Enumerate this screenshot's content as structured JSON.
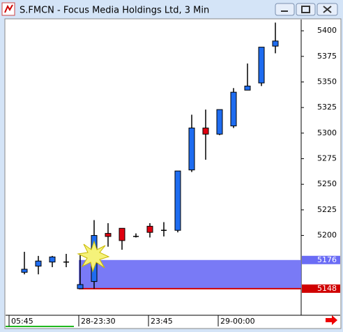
{
  "window": {
    "title": "S.FMCN - Focus Media Holdings Ltd, 3 Min"
  },
  "chart_data": {
    "type": "candlestick",
    "open": [
      5164,
      5170,
      5174,
      5174,
      5148,
      5155,
      5202,
      5207,
      5199,
      5209,
      5205,
      5205,
      5264,
      5305,
      5299,
      5307,
      5342,
      5349,
      5385
    ],
    "high": [
      5184,
      5180,
      5180,
      5182,
      5181,
      5215,
      5212,
      5207,
      5202,
      5212,
      5213,
      5263,
      5318,
      5323,
      5323,
      5344,
      5368,
      5384,
      5408
    ],
    "low": [
      5162,
      5162,
      5169,
      5169,
      5148,
      5148,
      5189,
      5186,
      5198,
      5198,
      5199,
      5203,
      5262,
      5274,
      5298,
      5305,
      5342,
      5346,
      5378
    ],
    "close": [
      5167,
      5175,
      5179,
      5174,
      5152,
      5200,
      5199,
      5195,
      5199,
      5203,
      5205,
      5263,
      5305,
      5299,
      5323,
      5340,
      5346,
      5384,
      5390
    ],
    "up_color": "#1e6cf0",
    "down_color": "#e00010",
    "ylim": [
      5122,
      5411
    ],
    "yticks": [
      5200,
      5225,
      5250,
      5275,
      5300,
      5325,
      5350,
      5375,
      5400
    ],
    "xticks": [
      {
        "value": -1,
        "label": "05:45"
      },
      {
        "value": 4,
        "label": "28-23:30"
      },
      {
        "value": 9,
        "label": "23:45"
      },
      {
        "value": 14,
        "label": "29-00:00"
      }
    ],
    "zone": {
      "low": 5148,
      "high": 5176,
      "color": "#6a6cf5",
      "edge_color": "#d00000"
    }
  }
}
